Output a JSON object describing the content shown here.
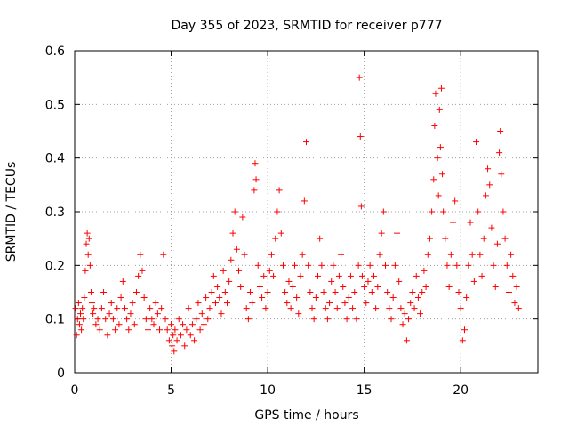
{
  "chart_data": {
    "type": "scatter",
    "title": "Day 355 of 2023, SRMTID for receiver p777",
    "xlabel": "GPS time / hours",
    "ylabel": "SRMTID / TECUs",
    "xlim": [
      0,
      24
    ],
    "ylim": [
      0,
      0.6
    ],
    "x_ticks": [
      0,
      5,
      10,
      15,
      20
    ],
    "x_tick_labels": [
      "0",
      "5",
      "10",
      "15",
      "20"
    ],
    "y_ticks": [
      0,
      0.1,
      0.2,
      0.3,
      0.4,
      0.5,
      0.6
    ],
    "y_tick_labels": [
      "0",
      "0.1",
      "0.2",
      "0.3",
      "0.4",
      "0.5",
      "0.6"
    ],
    "grid": true,
    "marker": "+",
    "color": "#ff0000",
    "series": [
      {
        "name": "SRMTID",
        "points": [
          [
            0.05,
            0.12
          ],
          [
            0.1,
            0.07
          ],
          [
            0.15,
            0.1
          ],
          [
            0.2,
            0.13
          ],
          [
            0.25,
            0.09
          ],
          [
            0.3,
            0.11
          ],
          [
            0.35,
            0.08
          ],
          [
            0.4,
            0.12
          ],
          [
            0.45,
            0.1
          ],
          [
            0.5,
            0.14
          ],
          [
            0.55,
            0.19
          ],
          [
            0.6,
            0.24
          ],
          [
            0.65,
            0.26
          ],
          [
            0.7,
            0.22
          ],
          [
            0.75,
            0.25
          ],
          [
            0.8,
            0.2
          ],
          [
            0.85,
            0.15
          ],
          [
            0.9,
            0.13
          ],
          [
            0.95,
            0.11
          ],
          [
            1.0,
            0.12
          ],
          [
            1.1,
            0.09
          ],
          [
            1.2,
            0.1
          ],
          [
            1.3,
            0.08
          ],
          [
            1.4,
            0.12
          ],
          [
            1.5,
            0.15
          ],
          [
            1.6,
            0.1
          ],
          [
            1.7,
            0.07
          ],
          [
            1.8,
            0.11
          ],
          [
            1.9,
            0.13
          ],
          [
            2.0,
            0.1
          ],
          [
            2.1,
            0.08
          ],
          [
            2.2,
            0.12
          ],
          [
            2.3,
            0.09
          ],
          [
            2.4,
            0.14
          ],
          [
            2.5,
            0.17
          ],
          [
            2.6,
            0.12
          ],
          [
            2.7,
            0.1
          ],
          [
            2.8,
            0.08
          ],
          [
            2.9,
            0.11
          ],
          [
            3.0,
            0.13
          ],
          [
            3.1,
            0.09
          ],
          [
            3.2,
            0.15
          ],
          [
            3.3,
            0.18
          ],
          [
            3.4,
            0.22
          ],
          [
            3.5,
            0.19
          ],
          [
            3.6,
            0.14
          ],
          [
            3.7,
            0.1
          ],
          [
            3.8,
            0.08
          ],
          [
            3.9,
            0.12
          ],
          [
            4.0,
            0.1
          ],
          [
            4.1,
            0.09
          ],
          [
            4.2,
            0.13
          ],
          [
            4.3,
            0.11
          ],
          [
            4.4,
            0.08
          ],
          [
            4.5,
            0.12
          ],
          [
            4.6,
            0.22
          ],
          [
            4.7,
            0.1
          ],
          [
            4.8,
            0.08
          ],
          [
            4.9,
            0.06
          ],
          [
            5.0,
            0.09
          ],
          [
            5.05,
            0.05
          ],
          [
            5.1,
            0.07
          ],
          [
            5.15,
            0.04
          ],
          [
            5.2,
            0.08
          ],
          [
            5.3,
            0.06
          ],
          [
            5.4,
            0.1
          ],
          [
            5.5,
            0.07
          ],
          [
            5.6,
            0.09
          ],
          [
            5.7,
            0.05
          ],
          [
            5.8,
            0.08
          ],
          [
            5.9,
            0.12
          ],
          [
            6.0,
            0.07
          ],
          [
            6.1,
            0.09
          ],
          [
            6.2,
            0.06
          ],
          [
            6.3,
            0.1
          ],
          [
            6.4,
            0.13
          ],
          [
            6.5,
            0.08
          ],
          [
            6.6,
            0.11
          ],
          [
            6.7,
            0.09
          ],
          [
            6.8,
            0.14
          ],
          [
            6.9,
            0.1
          ],
          [
            7.0,
            0.12
          ],
          [
            7.1,
            0.15
          ],
          [
            7.2,
            0.18
          ],
          [
            7.3,
            0.13
          ],
          [
            7.4,
            0.16
          ],
          [
            7.5,
            0.14
          ],
          [
            7.6,
            0.11
          ],
          [
            7.7,
            0.19
          ],
          [
            7.8,
            0.15
          ],
          [
            7.9,
            0.13
          ],
          [
            8.0,
            0.17
          ],
          [
            8.1,
            0.21
          ],
          [
            8.2,
            0.26
          ],
          [
            8.3,
            0.3
          ],
          [
            8.4,
            0.23
          ],
          [
            8.5,
            0.19
          ],
          [
            8.6,
            0.16
          ],
          [
            8.7,
            0.29
          ],
          [
            8.8,
            0.22
          ],
          [
            8.9,
            0.12
          ],
          [
            9.0,
            0.1
          ],
          [
            9.1,
            0.15
          ],
          [
            9.2,
            0.13
          ],
          [
            9.3,
            0.34
          ],
          [
            9.35,
            0.39
          ],
          [
            9.4,
            0.36
          ],
          [
            9.5,
            0.2
          ],
          [
            9.6,
            0.16
          ],
          [
            9.7,
            0.14
          ],
          [
            9.8,
            0.18
          ],
          [
            9.9,
            0.12
          ],
          [
            10.0,
            0.15
          ],
          [
            10.1,
            0.19
          ],
          [
            10.2,
            0.22
          ],
          [
            10.3,
            0.18
          ],
          [
            10.4,
            0.25
          ],
          [
            10.5,
            0.3
          ],
          [
            10.6,
            0.34
          ],
          [
            10.7,
            0.26
          ],
          [
            10.8,
            0.2
          ],
          [
            10.9,
            0.15
          ],
          [
            11.0,
            0.13
          ],
          [
            11.1,
            0.17
          ],
          [
            11.2,
            0.12
          ],
          [
            11.3,
            0.16
          ],
          [
            11.4,
            0.2
          ],
          [
            11.5,
            0.14
          ],
          [
            11.6,
            0.11
          ],
          [
            11.7,
            0.18
          ],
          [
            11.8,
            0.22
          ],
          [
            11.9,
            0.32
          ],
          [
            12.0,
            0.43
          ],
          [
            12.1,
            0.2
          ],
          [
            12.2,
            0.15
          ],
          [
            12.3,
            0.12
          ],
          [
            12.4,
            0.1
          ],
          [
            12.5,
            0.14
          ],
          [
            12.6,
            0.18
          ],
          [
            12.7,
            0.25
          ],
          [
            12.8,
            0.2
          ],
          [
            12.9,
            0.15
          ],
          [
            13.0,
            0.12
          ],
          [
            13.1,
            0.1
          ],
          [
            13.2,
            0.13
          ],
          [
            13.3,
            0.17
          ],
          [
            13.4,
            0.2
          ],
          [
            13.5,
            0.15
          ],
          [
            13.6,
            0.12
          ],
          [
            13.7,
            0.18
          ],
          [
            13.8,
            0.22
          ],
          [
            13.9,
            0.16
          ],
          [
            14.0,
            0.13
          ],
          [
            14.1,
            0.1
          ],
          [
            14.2,
            0.14
          ],
          [
            14.3,
            0.18
          ],
          [
            14.4,
            0.12
          ],
          [
            14.5,
            0.15
          ],
          [
            14.6,
            0.1
          ],
          [
            14.7,
            0.2
          ],
          [
            14.75,
            0.55
          ],
          [
            14.8,
            0.44
          ],
          [
            14.85,
            0.31
          ],
          [
            14.9,
            0.18
          ],
          [
            15.0,
            0.16
          ],
          [
            15.1,
            0.13
          ],
          [
            15.2,
            0.17
          ],
          [
            15.3,
            0.2
          ],
          [
            15.4,
            0.15
          ],
          [
            15.5,
            0.18
          ],
          [
            15.6,
            0.12
          ],
          [
            15.7,
            0.16
          ],
          [
            15.8,
            0.22
          ],
          [
            15.9,
            0.26
          ],
          [
            16.0,
            0.3
          ],
          [
            16.1,
            0.2
          ],
          [
            16.2,
            0.15
          ],
          [
            16.3,
            0.12
          ],
          [
            16.4,
            0.1
          ],
          [
            16.5,
            0.14
          ],
          [
            16.6,
            0.2
          ],
          [
            16.7,
            0.26
          ],
          [
            16.8,
            0.17
          ],
          [
            16.9,
            0.12
          ],
          [
            17.0,
            0.09
          ],
          [
            17.1,
            0.11
          ],
          [
            17.2,
            0.06
          ],
          [
            17.3,
            0.1
          ],
          [
            17.4,
            0.13
          ],
          [
            17.5,
            0.15
          ],
          [
            17.6,
            0.12
          ],
          [
            17.7,
            0.18
          ],
          [
            17.8,
            0.14
          ],
          [
            17.9,
            0.11
          ],
          [
            18.0,
            0.15
          ],
          [
            18.1,
            0.19
          ],
          [
            18.2,
            0.16
          ],
          [
            18.3,
            0.22
          ],
          [
            18.4,
            0.25
          ],
          [
            18.5,
            0.3
          ],
          [
            18.6,
            0.36
          ],
          [
            18.65,
            0.46
          ],
          [
            18.7,
            0.52
          ],
          [
            18.8,
            0.4
          ],
          [
            18.85,
            0.33
          ],
          [
            18.9,
            0.49
          ],
          [
            18.95,
            0.42
          ],
          [
            19.0,
            0.53
          ],
          [
            19.05,
            0.37
          ],
          [
            19.1,
            0.3
          ],
          [
            19.2,
            0.25
          ],
          [
            19.3,
            0.2
          ],
          [
            19.4,
            0.16
          ],
          [
            19.5,
            0.22
          ],
          [
            19.6,
            0.28
          ],
          [
            19.7,
            0.32
          ],
          [
            19.8,
            0.2
          ],
          [
            19.9,
            0.15
          ],
          [
            20.0,
            0.12
          ],
          [
            20.1,
            0.06
          ],
          [
            20.2,
            0.08
          ],
          [
            20.3,
            0.14
          ],
          [
            20.4,
            0.2
          ],
          [
            20.5,
            0.28
          ],
          [
            20.6,
            0.22
          ],
          [
            20.7,
            0.17
          ],
          [
            20.8,
            0.43
          ],
          [
            20.9,
            0.3
          ],
          [
            21.0,
            0.22
          ],
          [
            21.1,
            0.18
          ],
          [
            21.2,
            0.25
          ],
          [
            21.3,
            0.33
          ],
          [
            21.4,
            0.38
          ],
          [
            21.5,
            0.35
          ],
          [
            21.6,
            0.27
          ],
          [
            21.7,
            0.2
          ],
          [
            21.8,
            0.16
          ],
          [
            21.9,
            0.24
          ],
          [
            22.0,
            0.41
          ],
          [
            22.05,
            0.45
          ],
          [
            22.1,
            0.37
          ],
          [
            22.2,
            0.3
          ],
          [
            22.3,
            0.25
          ],
          [
            22.4,
            0.2
          ],
          [
            22.5,
            0.15
          ],
          [
            22.6,
            0.22
          ],
          [
            22.7,
            0.18
          ],
          [
            22.8,
            0.13
          ],
          [
            22.9,
            0.16
          ],
          [
            23.0,
            0.12
          ]
        ]
      }
    ]
  }
}
